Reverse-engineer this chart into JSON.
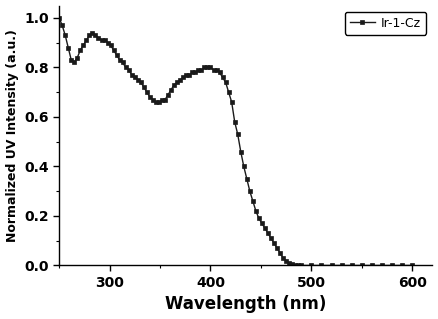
{
  "title": "",
  "xlabel": "Wavelength (nm)",
  "ylabel": "Normalized UV Intensity (a.u.)",
  "legend_label": "Ir-1-Cz",
  "xlim": [
    250,
    620
  ],
  "ylim": [
    0.0,
    1.05
  ],
  "xticks": [
    300,
    400,
    500,
    600
  ],
  "yticks": [
    0.0,
    0.2,
    0.4,
    0.6,
    0.8,
    1.0
  ],
  "x": [
    250,
    253,
    256,
    259,
    262,
    265,
    268,
    271,
    274,
    277,
    280,
    283,
    286,
    289,
    292,
    295,
    298,
    301,
    304,
    307,
    310,
    313,
    316,
    319,
    322,
    325,
    328,
    331,
    334,
    337,
    340,
    343,
    346,
    349,
    352,
    355,
    358,
    361,
    364,
    367,
    370,
    373,
    376,
    379,
    382,
    385,
    388,
    391,
    394,
    397,
    400,
    403,
    406,
    409,
    412,
    415,
    418,
    421,
    424,
    427,
    430,
    433,
    436,
    439,
    442,
    445,
    448,
    451,
    454,
    457,
    460,
    463,
    466,
    469,
    472,
    475,
    478,
    481,
    484,
    487,
    490,
    500,
    510,
    520,
    530,
    540,
    550,
    560,
    570,
    580,
    590,
    600
  ],
  "y": [
    1.0,
    0.97,
    0.93,
    0.88,
    0.83,
    0.82,
    0.84,
    0.87,
    0.89,
    0.91,
    0.93,
    0.94,
    0.93,
    0.92,
    0.91,
    0.91,
    0.9,
    0.89,
    0.87,
    0.85,
    0.83,
    0.82,
    0.8,
    0.79,
    0.77,
    0.76,
    0.75,
    0.74,
    0.72,
    0.7,
    0.68,
    0.67,
    0.66,
    0.66,
    0.67,
    0.67,
    0.69,
    0.71,
    0.73,
    0.74,
    0.75,
    0.76,
    0.77,
    0.77,
    0.78,
    0.78,
    0.79,
    0.79,
    0.8,
    0.8,
    0.8,
    0.79,
    0.79,
    0.78,
    0.76,
    0.74,
    0.7,
    0.66,
    0.58,
    0.53,
    0.46,
    0.4,
    0.35,
    0.3,
    0.26,
    0.22,
    0.19,
    0.17,
    0.15,
    0.13,
    0.11,
    0.09,
    0.07,
    0.05,
    0.03,
    0.02,
    0.01,
    0.005,
    0.002,
    0.001,
    0.0,
    0.0,
    0.0,
    0.0,
    0.0,
    0.0,
    0.0,
    0.0,
    0.0,
    0.0,
    0.0,
    0.0
  ],
  "line_color": "#1a1a1a",
  "marker": "s",
  "marker_size": 3.0,
  "linewidth": 1.0,
  "bg_color": "#ffffff",
  "xlabel_fontsize": 12,
  "ylabel_fontsize": 9,
  "tick_labelsize": 10
}
